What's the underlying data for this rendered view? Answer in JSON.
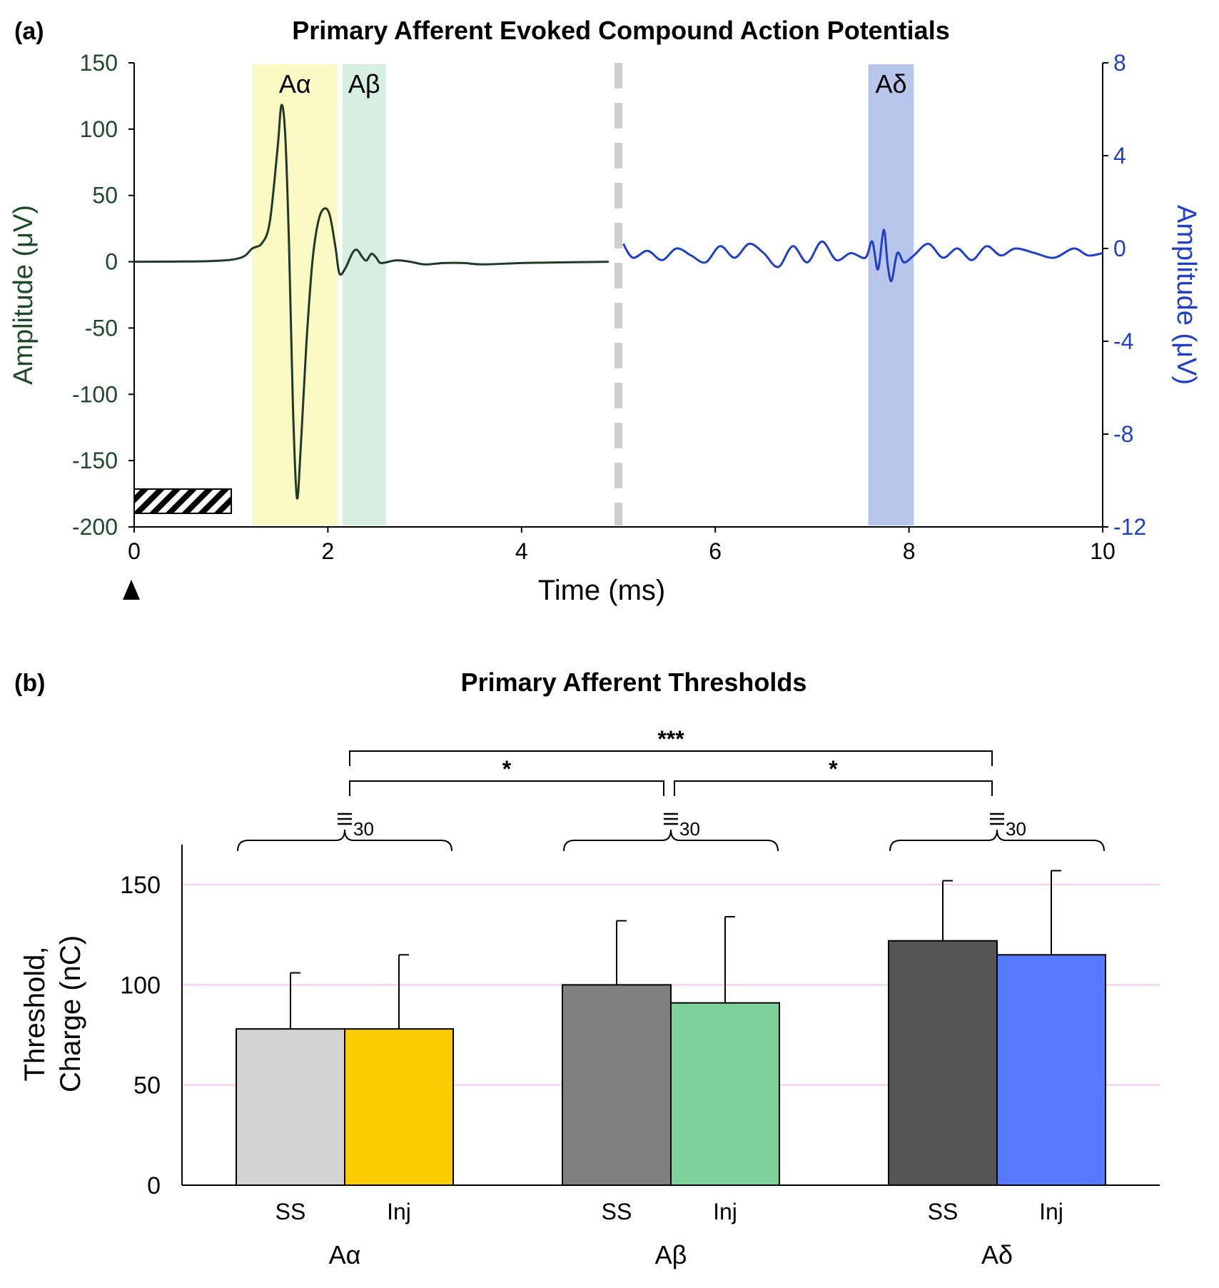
{
  "chart_data": [
    {
      "type": "line",
      "panel_label": "(a)",
      "title": "Primary Afferent Evoked Compound Action Potentials",
      "xlabel": "Time (ms)",
      "ylabel_left": "Amplitude (μV)",
      "ylabel_right": "Amplitude (μV)",
      "xlim": [
        0,
        10
      ],
      "ylim_left": [
        -200,
        150
      ],
      "ylim_right": [
        -12,
        8
      ],
      "x_ticks": [
        "0",
        "2",
        "4",
        "6",
        "8",
        "10"
      ],
      "y_ticks_left": [
        "150",
        "100",
        "50",
        "0",
        "-50",
        "-100",
        "-150",
        "-200"
      ],
      "y_ticks_right": [
        "8",
        "4",
        "0",
        "-4",
        "-8",
        "-12"
      ],
      "bands": [
        {
          "label": "Aα",
          "x": [
            1.22,
            2.1
          ],
          "color": "#fbf9c4"
        },
        {
          "label": "Aβ",
          "x": [
            2.15,
            2.6
          ],
          "color": "#d6efe0"
        },
        {
          "label": "Aδ",
          "x": [
            7.58,
            8.05
          ],
          "color": "#b8c6ec"
        }
      ],
      "divider_x": 5.0,
      "series": [
        {
          "axis": "left",
          "color": "#1f3a27",
          "points": [
            [
              0,
              0
            ],
            [
              0.8,
              0.5
            ],
            [
              1.1,
              3
            ],
            [
              1.22,
              10
            ],
            [
              1.32,
              14
            ],
            [
              1.4,
              30
            ],
            [
              1.48,
              85
            ],
            [
              1.52,
              118
            ],
            [
              1.56,
              95
            ],
            [
              1.6,
              10
            ],
            [
              1.64,
              -110
            ],
            [
              1.68,
              -178
            ],
            [
              1.72,
              -140
            ],
            [
              1.78,
              -60
            ],
            [
              1.84,
              0
            ],
            [
              1.9,
              30
            ],
            [
              1.96,
              40
            ],
            [
              2.02,
              35
            ],
            [
              2.08,
              10
            ],
            [
              2.12,
              -9
            ],
            [
              2.18,
              -5
            ],
            [
              2.25,
              6
            ],
            [
              2.3,
              9
            ],
            [
              2.36,
              3
            ],
            [
              2.4,
              1
            ],
            [
              2.45,
              6
            ],
            [
              2.5,
              3
            ],
            [
              2.55,
              -1
            ],
            [
              2.7,
              1
            ],
            [
              2.85,
              0
            ],
            [
              3.0,
              -2
            ],
            [
              3.2,
              -1
            ],
            [
              3.4,
              -1
            ],
            [
              3.6,
              -2
            ],
            [
              4.0,
              -1
            ],
            [
              4.4,
              -0.5
            ],
            [
              4.9,
              0
            ]
          ]
        },
        {
          "axis": "right",
          "color": "#1f3fc4",
          "points": [
            [
              5.05,
              0.2
            ],
            [
              5.15,
              -0.4
            ],
            [
              5.3,
              -0.1
            ],
            [
              5.45,
              -0.5
            ],
            [
              5.6,
              0
            ],
            [
              5.75,
              -0.3
            ],
            [
              5.9,
              -0.6
            ],
            [
              6.05,
              0.1
            ],
            [
              6.2,
              -0.4
            ],
            [
              6.35,
              0.2
            ],
            [
              6.5,
              -0.2
            ],
            [
              6.65,
              -0.8
            ],
            [
              6.8,
              0.1
            ],
            [
              6.95,
              -0.6
            ],
            [
              7.1,
              0.3
            ],
            [
              7.25,
              -0.5
            ],
            [
              7.4,
              -0.2
            ],
            [
              7.55,
              -0.4
            ],
            [
              7.62,
              0.3
            ],
            [
              7.68,
              -0.9
            ],
            [
              7.74,
              0.8
            ],
            [
              7.78,
              -0.7
            ],
            [
              7.82,
              -1.4
            ],
            [
              7.88,
              -0.2
            ],
            [
              7.95,
              -0.6
            ],
            [
              8.05,
              -0.3
            ],
            [
              8.2,
              0.2
            ],
            [
              8.35,
              -0.4
            ],
            [
              8.5,
              0
            ],
            [
              8.65,
              -0.5
            ],
            [
              8.8,
              0.1
            ],
            [
              8.95,
              -0.3
            ],
            [
              9.1,
              0
            ],
            [
              9.3,
              -0.2
            ],
            [
              9.5,
              -0.4
            ],
            [
              9.7,
              0
            ],
            [
              9.85,
              -0.3
            ],
            [
              10.0,
              -0.2
            ]
          ]
        }
      ]
    },
    {
      "type": "bar",
      "panel_label": "(b)",
      "title": "Primary Afferent Thresholds",
      "ylabel": [
        "Threshold,",
        "Charge (nC)"
      ],
      "ylim": [
        0,
        170
      ],
      "y_ticks": [
        "0",
        "50",
        "100",
        "150"
      ],
      "grid": true,
      "groups": [
        "Aα",
        "Aβ",
        "Aδ"
      ],
      "bar_labels": [
        "SS",
        "Inj"
      ],
      "series": [
        {
          "group": "Aα",
          "label": "SS",
          "value": 78,
          "error": 28,
          "color": "#d3d3d3"
        },
        {
          "group": "Aα",
          "label": "Inj",
          "value": 78,
          "error": 37,
          "color": "#fccb00"
        },
        {
          "group": "Aβ",
          "label": "SS",
          "value": 100,
          "error": 32,
          "color": "#808080"
        },
        {
          "group": "Aβ",
          "label": "Inj",
          "value": 91,
          "error": 43,
          "color": "#7dd19a"
        },
        {
          "group": "Aδ",
          "label": "SS",
          "value": 122,
          "error": 30,
          "color": "#555555"
        },
        {
          "group": "Aδ",
          "label": "Inj",
          "value": 115,
          "error": 42,
          "color": "#557aff"
        }
      ],
      "n_label": "30",
      "significance": [
        {
          "from": "Aα",
          "to": "Aβ",
          "label": "*"
        },
        {
          "from": "Aβ",
          "to": "Aδ",
          "label": "*"
        },
        {
          "from": "Aα",
          "to": "Aδ",
          "label": "***"
        }
      ]
    }
  ]
}
